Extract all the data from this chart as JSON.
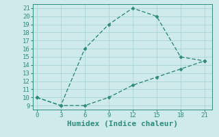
{
  "xlabel": "Humidex (Indice chaleur)",
  "line1_x": [
    0,
    3,
    6,
    9,
    12,
    15,
    18,
    21
  ],
  "line1_y": [
    10,
    9,
    16,
    19,
    21,
    20,
    15,
    14.5
  ],
  "line2_x": [
    0,
    3,
    6,
    9,
    12,
    15,
    18,
    21
  ],
  "line2_y": [
    10,
    9,
    9,
    10,
    11.5,
    12.5,
    13.5,
    14.5
  ],
  "line_color": "#2e8b7a",
  "bg_color": "#ceeaea",
  "grid_color": "#aad4d4",
  "xlim": [
    -0.5,
    22
  ],
  "ylim": [
    8.5,
    21.5
  ],
  "xticks": [
    0,
    3,
    6,
    9,
    12,
    15,
    18,
    21
  ],
  "yticks": [
    9,
    10,
    11,
    12,
    13,
    14,
    15,
    16,
    17,
    18,
    19,
    20,
    21
  ],
  "marker": "D",
  "marker_size": 2.5,
  "linewidth": 1.0,
  "xlabel_fontsize": 8,
  "tick_fontsize": 6.5
}
